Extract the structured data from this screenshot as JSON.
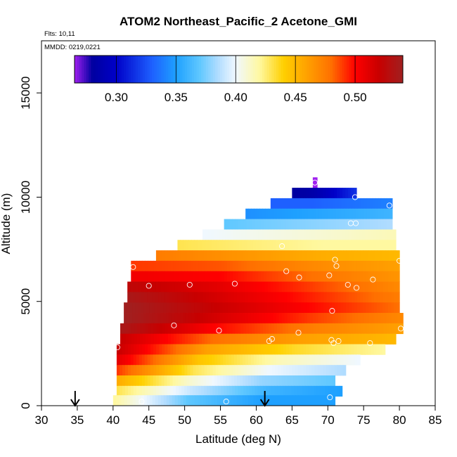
{
  "chart_data": {
    "type": "heatmap",
    "title": "ATOM2 Northeast_Pacific_2 Acetone_GMI",
    "flights_label": "Flts: 10,11",
    "date_label": "MMDD: 0219,0221",
    "xlabel": "Latitude (deg N)",
    "ylabel": "Altitude (m)",
    "xlim": [
      30,
      85
    ],
    "ylim": [
      0,
      17500
    ],
    "xticks": [
      "30",
      "35",
      "40",
      "45",
      "50",
      "55",
      "60",
      "65",
      "70",
      "75",
      "80",
      "85"
    ],
    "yticks": [
      "0",
      "5000",
      "10000",
      "15000"
    ],
    "colorbar": {
      "range": [
        0.265,
        0.54
      ],
      "tick_values": [
        0.3,
        0.35,
        0.4,
        0.45,
        0.5
      ],
      "tick_labels": [
        "0.30",
        "0.35",
        "0.40",
        "0.45",
        "0.50"
      ],
      "color_stops": [
        {
          "v": 0.265,
          "c": "#a020f0"
        },
        {
          "v": 0.28,
          "c": "#0000a0"
        },
        {
          "v": 0.3,
          "c": "#0000c8"
        },
        {
          "v": 0.33,
          "c": "#1e60ff"
        },
        {
          "v": 0.35,
          "c": "#1ea0ff"
        },
        {
          "v": 0.37,
          "c": "#60c8ff"
        },
        {
          "v": 0.385,
          "c": "#b0dcff"
        },
        {
          "v": 0.4,
          "c": "#f0f8ff"
        },
        {
          "v": 0.42,
          "c": "#fff8a0"
        },
        {
          "v": 0.44,
          "c": "#ffd000"
        },
        {
          "v": 0.46,
          "c": "#ffa000"
        },
        {
          "v": 0.48,
          "c": "#ff7000"
        },
        {
          "v": 0.5,
          "c": "#ff0000"
        },
        {
          "v": 0.52,
          "c": "#c80000"
        },
        {
          "v": 0.54,
          "c": "#a02020"
        }
      ]
    },
    "bands": [
      {
        "alt": 10700,
        "lat_min": 67.9,
        "lat_max": 68.5,
        "values": [
          0.265
        ]
      },
      {
        "alt": 10200,
        "lat_min": 65,
        "lat_max": 74,
        "values": [
          0.28,
          0.285,
          0.3,
          0.315
        ]
      },
      {
        "alt": 9700,
        "lat_min": 62,
        "lat_max": 79,
        "values": [
          0.33,
          0.33,
          0.335,
          0.34
        ]
      },
      {
        "alt": 9200,
        "lat_min": 58.5,
        "lat_max": 79,
        "values": [
          0.345,
          0.35,
          0.355,
          0.36
        ]
      },
      {
        "alt": 8700,
        "lat_min": 55.5,
        "lat_max": 79,
        "values": [
          0.37,
          0.375,
          0.38,
          0.385
        ]
      },
      {
        "alt": 8200,
        "lat_min": 52.5,
        "lat_max": 79.5,
        "values": [
          0.4,
          0.405,
          0.41,
          0.415
        ]
      },
      {
        "alt": 7700,
        "lat_min": 49,
        "lat_max": 79.5,
        "values": [
          0.43,
          0.425,
          0.42,
          0.42
        ]
      },
      {
        "alt": 7200,
        "lat_min": 46,
        "lat_max": 80,
        "values": [
          0.475,
          0.465,
          0.455,
          0.45
        ]
      },
      {
        "alt": 6700,
        "lat_min": 42.5,
        "lat_max": 80,
        "values": [
          0.49,
          0.485,
          0.47,
          0.46
        ]
      },
      {
        "alt": 6200,
        "lat_min": 42.5,
        "lat_max": 80,
        "values": [
          0.505,
          0.5,
          0.48,
          0.465
        ]
      },
      {
        "alt": 5700,
        "lat_min": 42,
        "lat_max": 80,
        "values": [
          0.525,
          0.51,
          0.49,
          0.47
        ]
      },
      {
        "alt": 5200,
        "lat_min": 42,
        "lat_max": 80,
        "values": [
          0.535,
          0.515,
          0.495,
          0.475
        ]
      },
      {
        "alt": 4700,
        "lat_min": 41.5,
        "lat_max": 80,
        "values": [
          0.54,
          0.52,
          0.5,
          0.48
        ]
      },
      {
        "alt": 4200,
        "lat_min": 41.5,
        "lat_max": 80.5,
        "values": [
          0.54,
          0.515,
          0.49,
          0.47
        ]
      },
      {
        "alt": 3700,
        "lat_min": 41,
        "lat_max": 80.5,
        "values": [
          0.535,
          0.5,
          0.475,
          0.46
        ]
      },
      {
        "alt": 3200,
        "lat_min": 41,
        "lat_max": 79.5,
        "values": [
          0.52,
          0.48,
          0.46,
          0.45
        ]
      },
      {
        "alt": 2700,
        "lat_min": 40.5,
        "lat_max": 78,
        "values": [
          0.52,
          0.46,
          0.435,
          0.42
        ]
      },
      {
        "alt": 2200,
        "lat_min": 40.5,
        "lat_max": 74.5,
        "values": [
          0.51,
          0.445,
          0.415,
          0.4
        ]
      },
      {
        "alt": 1700,
        "lat_min": 40.5,
        "lat_max": 72.5,
        "values": [
          0.49,
          0.43,
          0.4,
          0.385
        ]
      },
      {
        "alt": 1200,
        "lat_min": 40.5,
        "lat_max": 71,
        "values": [
          0.455,
          0.41,
          0.38,
          0.37
        ]
      },
      {
        "alt": 700,
        "lat_min": 40.5,
        "lat_max": 72,
        "values": [
          0.43,
          0.39,
          0.36,
          0.35
        ]
      },
      {
        "alt": 250,
        "lat_min": 40,
        "lat_max": 71,
        "values": [
          0.42,
          0.37,
          0.35,
          0.35
        ]
      }
    ],
    "points": [
      {
        "lat": 68.2,
        "alt": 10700
      },
      {
        "lat": 73.8,
        "alt": 10000
      },
      {
        "lat": 78.6,
        "alt": 9600
      },
      {
        "lat": 73.2,
        "alt": 8750
      },
      {
        "lat": 73.9,
        "alt": 8750
      },
      {
        "lat": 63.6,
        "alt": 7650
      },
      {
        "lat": 71.0,
        "alt": 7000
      },
      {
        "lat": 80.0,
        "alt": 6950
      },
      {
        "lat": 71.2,
        "alt": 6700
      },
      {
        "lat": 42.8,
        "alt": 6650
      },
      {
        "lat": 64.2,
        "alt": 6450
      },
      {
        "lat": 70.2,
        "alt": 6250
      },
      {
        "lat": 66.0,
        "alt": 6150
      },
      {
        "lat": 76.3,
        "alt": 6050
      },
      {
        "lat": 72.8,
        "alt": 5800
      },
      {
        "lat": 57.0,
        "alt": 5850
      },
      {
        "lat": 50.7,
        "alt": 5800
      },
      {
        "lat": 45.0,
        "alt": 5750
      },
      {
        "lat": 74.0,
        "alt": 5650
      },
      {
        "lat": 70.6,
        "alt": 4550
      },
      {
        "lat": 48.5,
        "alt": 3850
      },
      {
        "lat": 80.2,
        "alt": 3700
      },
      {
        "lat": 54.8,
        "alt": 3600
      },
      {
        "lat": 65.9,
        "alt": 3500
      },
      {
        "lat": 62.2,
        "alt": 3200
      },
      {
        "lat": 61.8,
        "alt": 3100
      },
      {
        "lat": 70.5,
        "alt": 3150
      },
      {
        "lat": 70.8,
        "alt": 3000
      },
      {
        "lat": 71.5,
        "alt": 3100
      },
      {
        "lat": 75.9,
        "alt": 3000
      },
      {
        "lat": 40.6,
        "alt": 2800
      },
      {
        "lat": 70.3,
        "alt": 400
      },
      {
        "lat": 44.0,
        "alt": 200
      },
      {
        "lat": 55.8,
        "alt": 200
      }
    ],
    "markers": [
      {
        "lat": 34.7,
        "label": "arrow"
      },
      {
        "lat": 61.2,
        "label": "arrow"
      }
    ]
  }
}
